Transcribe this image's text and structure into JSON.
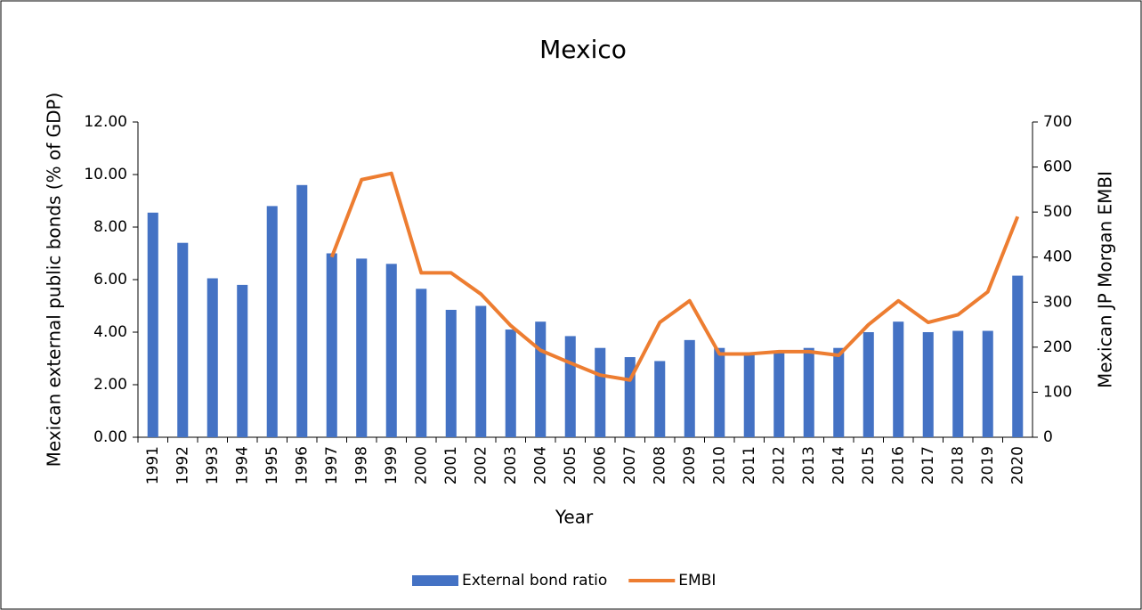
{
  "chart_data": {
    "type": "bar_line",
    "title": "Mexico",
    "x_label": "Year",
    "y_label": "Mexican external public bonds (% of GDP)",
    "y2_label": "Mexican JP Morgan EMBI",
    "categories": [
      "1991",
      "1992",
      "1993",
      "1994",
      "1995",
      "1996",
      "1997",
      "1998",
      "1999",
      "2000",
      "2001",
      "2002",
      "2003",
      "2004",
      "2005",
      "2006",
      "2007",
      "2008",
      "2009",
      "2010",
      "2011",
      "2012",
      "2013",
      "2014",
      "2015",
      "2016",
      "2017",
      "2018",
      "2019",
      "2020"
    ],
    "series": [
      {
        "name": "External bond ratio",
        "color": "#4472c4",
        "type": "bar",
        "values": [
          8.55,
          7.4,
          6.05,
          5.8,
          8.8,
          9.6,
          7.0,
          6.8,
          6.6,
          5.65,
          4.85,
          5.0,
          4.1,
          4.4,
          3.85,
          3.4,
          3.05,
          2.9,
          3.7,
          3.4,
          3.2,
          3.3,
          3.4,
          3.4,
          4.0,
          4.4,
          4.0,
          4.05,
          4.05,
          6.15
        ]
      },
      {
        "name": "EMBI",
        "color": "#ed7d31",
        "type": "line",
        "axis": "y2",
        "values": [
          null,
          null,
          null,
          null,
          null,
          null,
          400,
          572,
          586,
          365,
          365,
          318,
          248,
          193,
          165,
          138,
          127,
          255,
          303,
          185,
          185,
          190,
          190,
          182,
          250,
          303,
          255,
          272,
          323,
          490
        ]
      }
    ],
    "ylim": [
      0,
      12
    ],
    "yticks": [
      {
        "value": 0,
        "label": "0.00"
      },
      {
        "value": 2,
        "label": "2.00"
      },
      {
        "value": 4,
        "label": "4.00"
      },
      {
        "value": 6,
        "label": "6.00"
      },
      {
        "value": 8,
        "label": "8.00"
      },
      {
        "value": 10,
        "label": "10.00"
      },
      {
        "value": 12,
        "label": "12.00"
      }
    ],
    "y2lim": [
      0,
      700
    ],
    "y2ticks": [
      0,
      100,
      200,
      300,
      400,
      500,
      600,
      700
    ],
    "legend": "bottom"
  }
}
